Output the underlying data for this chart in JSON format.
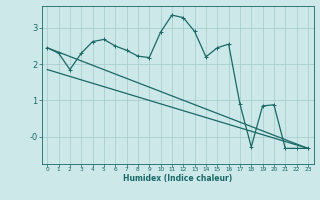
{
  "xlabel": "Humidex (Indice chaleur)",
  "bg_color": "#cce8e8",
  "grid_color": "#aacece",
  "line_color": "#1a6868",
  "xlim": [
    -0.5,
    23.5
  ],
  "ylim": [
    -0.75,
    3.6
  ],
  "xticks": [
    0,
    1,
    2,
    3,
    4,
    5,
    6,
    7,
    8,
    9,
    10,
    11,
    12,
    13,
    14,
    15,
    16,
    17,
    18,
    19,
    20,
    21,
    22,
    23
  ],
  "yticks": [
    0,
    1,
    2,
    3
  ],
  "ytick_labels": [
    "-0",
    "1",
    "2",
    "3"
  ],
  "curve1_x": [
    0,
    1,
    2,
    3,
    4,
    5,
    6,
    7,
    8,
    9,
    10,
    11,
    12,
    13,
    14,
    15,
    16,
    17,
    18,
    19,
    20,
    21,
    22,
    23
  ],
  "curve1_y": [
    2.45,
    2.3,
    1.85,
    2.3,
    2.62,
    2.68,
    2.5,
    2.38,
    2.22,
    2.18,
    2.88,
    3.35,
    3.28,
    2.9,
    2.2,
    2.45,
    2.55,
    0.9,
    -0.28,
    0.85,
    0.88,
    -0.32,
    -0.32,
    -0.32
  ],
  "curve2_x": [
    0,
    23
  ],
  "curve2_y": [
    2.45,
    -0.32
  ],
  "curve3_x": [
    0,
    23
  ],
  "curve3_y": [
    1.85,
    -0.32
  ]
}
